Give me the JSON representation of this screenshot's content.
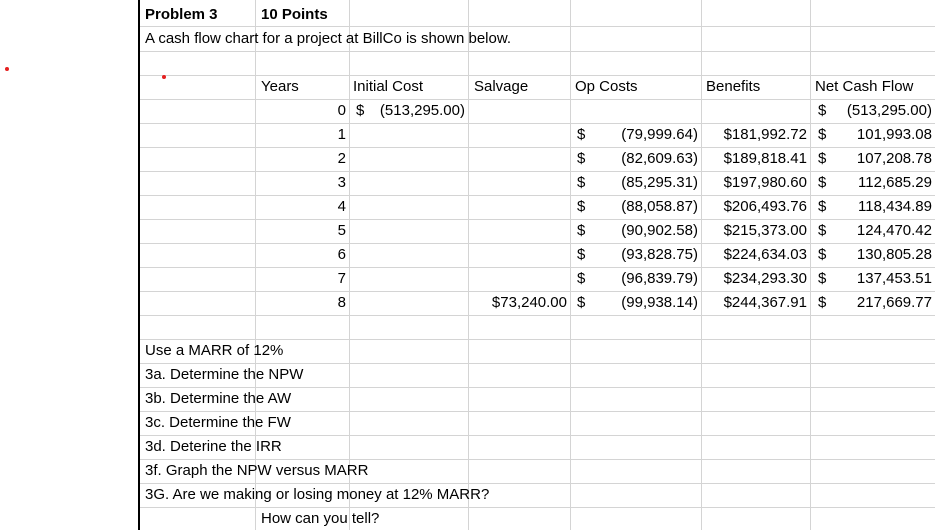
{
  "header": {
    "problem": "Problem 3",
    "points": "10 Points"
  },
  "description": "A cash flow chart for a project at BillCo is shown below.",
  "columns": {
    "years": "Years",
    "initial_cost": "Initial Cost",
    "salvage": "Salvage",
    "op_costs": "Op Costs",
    "benefits": "Benefits",
    "net_cash_flow": "Net Cash Flow"
  },
  "rows": [
    {
      "year": "0",
      "initial_cost_sym": "$",
      "initial_cost": "(513,295.00)",
      "salvage": "",
      "op_sym": "",
      "op_cost": "",
      "benefits": "",
      "net_sym": "$",
      "net": "(513,295.00)"
    },
    {
      "year": "1",
      "initial_cost_sym": "",
      "initial_cost": "",
      "salvage": "",
      "op_sym": "$",
      "op_cost": "(79,999.64)",
      "benefits": "$181,992.72",
      "net_sym": "$",
      "net": "101,993.08"
    },
    {
      "year": "2",
      "initial_cost_sym": "",
      "initial_cost": "",
      "salvage": "",
      "op_sym": "$",
      "op_cost": "(82,609.63)",
      "benefits": "$189,818.41",
      "net_sym": "$",
      "net": "107,208.78"
    },
    {
      "year": "3",
      "initial_cost_sym": "",
      "initial_cost": "",
      "salvage": "",
      "op_sym": "$",
      "op_cost": "(85,295.31)",
      "benefits": "$197,980.60",
      "net_sym": "$",
      "net": "112,685.29"
    },
    {
      "year": "4",
      "initial_cost_sym": "",
      "initial_cost": "",
      "salvage": "",
      "op_sym": "$",
      "op_cost": "(88,058.87)",
      "benefits": "$206,493.76",
      "net_sym": "$",
      "net": "118,434.89"
    },
    {
      "year": "5",
      "initial_cost_sym": "",
      "initial_cost": "",
      "salvage": "",
      "op_sym": "$",
      "op_cost": "(90,902.58)",
      "benefits": "$215,373.00",
      "net_sym": "$",
      "net": "124,470.42"
    },
    {
      "year": "6",
      "initial_cost_sym": "",
      "initial_cost": "",
      "salvage": "",
      "op_sym": "$",
      "op_cost": "(93,828.75)",
      "benefits": "$224,634.03",
      "net_sym": "$",
      "net": "130,805.28"
    },
    {
      "year": "7",
      "initial_cost_sym": "",
      "initial_cost": "",
      "salvage": "",
      "op_sym": "$",
      "op_cost": "(96,839.79)",
      "benefits": "$234,293.30",
      "net_sym": "$",
      "net": "137,453.51"
    },
    {
      "year": "8",
      "initial_cost_sym": "",
      "initial_cost": "",
      "salvage": "$73,240.00",
      "op_sym": "$",
      "op_cost": "(99,938.14)",
      "benefits": "$244,367.91",
      "net_sym": "$",
      "net": "217,669.77"
    }
  ],
  "questions": [
    "Use a MARR of 12%",
    "3a. Determine the NPW",
    "3b. Determine the AW",
    "3c. Determine the FW",
    "3d. Deterine the IRR",
    "3f. Graph the NPW versus MARR",
    "3G. Are we making or losing money at 12% MARR?"
  ],
  "followup": "How can you tell?",
  "colors": {
    "gridline": "#d4d4d4",
    "marker": "#e52020"
  }
}
